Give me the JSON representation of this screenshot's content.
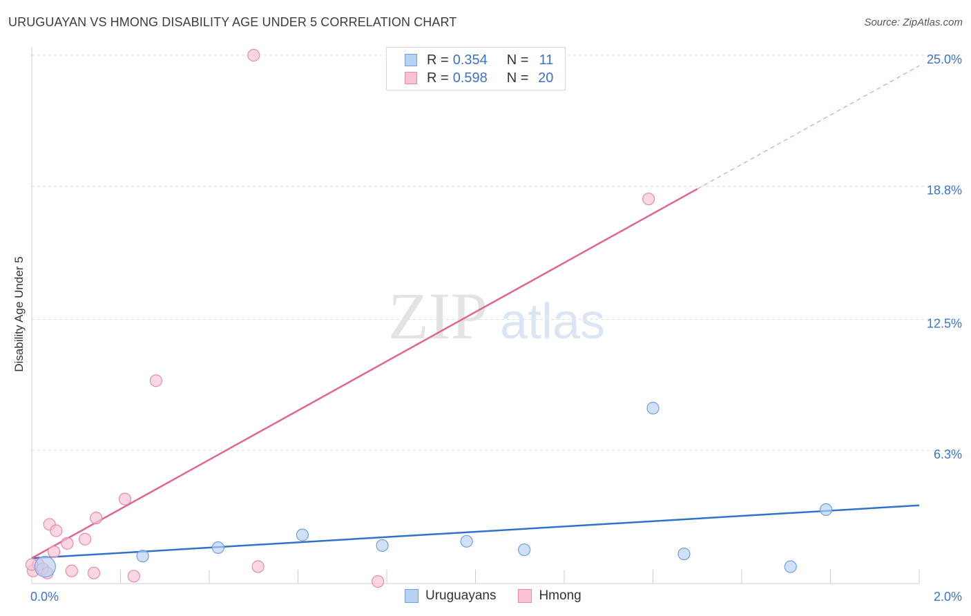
{
  "header": {
    "title": "URUGUAYAN VS HMONG DISABILITY AGE UNDER 5 CORRELATION CHART",
    "source": "Source: ZipAtlas.com"
  },
  "watermark": {
    "zip": "ZIP",
    "atlas": "atlas"
  },
  "legend": {
    "rows": [
      {
        "r_label": "R =",
        "r_value": "0.354",
        "n_label": "N =",
        "n_value": "11"
      },
      {
        "r_label": "R =",
        "r_value": "0.598",
        "n_label": "N =",
        "n_value": "20"
      }
    ]
  },
  "colors": {
    "uruguayans_fill": "#b7d1f2",
    "uruguayans_stroke": "#6f9fdc",
    "uruguayans_line": "#2f72c9",
    "hmong_fill": "#f8c2d2",
    "hmong_stroke": "#e68aa7",
    "hmong_line": "#e0668d",
    "tick_label": "#3a73c9",
    "grid": "#dddddd"
  },
  "chart_data": {
    "type": "scatter",
    "title": "URUGUAYAN VS HMONG DISABILITY AGE UNDER 5 CORRELATION CHART",
    "xlabel": "",
    "ylabel": "Disability Age Under 5",
    "xlim": [
      0.0,
      2.0
    ],
    "ylim": [
      0.0,
      25.0
    ],
    "x_tick_labels": [
      "0.0%",
      "2.0%"
    ],
    "y_ticks": [
      6.3,
      12.5,
      18.8,
      25.0
    ],
    "y_tick_labels": [
      "6.3%",
      "12.5%",
      "18.8%",
      "25.0%"
    ],
    "grid": true,
    "legend": [
      "Uruguayans",
      "Hmong"
    ],
    "series": [
      {
        "name": "Uruguayans",
        "r": 0.354,
        "n": 11,
        "points": [
          {
            "x": 0.03,
            "y": 0.8,
            "size": "large"
          },
          {
            "x": 0.25,
            "y": 1.3
          },
          {
            "x": 0.42,
            "y": 1.7
          },
          {
            "x": 0.61,
            "y": 2.3
          },
          {
            "x": 0.79,
            "y": 1.8
          },
          {
            "x": 0.98,
            "y": 2.0
          },
          {
            "x": 1.11,
            "y": 1.6
          },
          {
            "x": 1.4,
            "y": 8.3
          },
          {
            "x": 1.47,
            "y": 1.4
          },
          {
            "x": 1.71,
            "y": 0.8
          },
          {
            "x": 1.79,
            "y": 3.5
          }
        ],
        "trend": {
          "x0": 0.0,
          "y0": 1.2,
          "x1": 2.0,
          "y1": 3.7,
          "dashed_from": null
        }
      },
      {
        "name": "Hmong",
        "r": 0.598,
        "n": 20,
        "points": [
          {
            "x": 0.003,
            "y": 0.6
          },
          {
            "x": 0.015,
            "y": 0.9
          },
          {
            "x": 0.025,
            "y": 0.7
          },
          {
            "x": 0.035,
            "y": 0.5
          },
          {
            "x": 0.04,
            "y": 2.8
          },
          {
            "x": 0.05,
            "y": 1.5
          },
          {
            "x": 0.055,
            "y": 2.5
          },
          {
            "x": 0.08,
            "y": 1.9
          },
          {
            "x": 0.09,
            "y": 0.6
          },
          {
            "x": 0.12,
            "y": 2.1
          },
          {
            "x": 0.14,
            "y": 0.5
          },
          {
            "x": 0.145,
            "y": 3.1
          },
          {
            "x": 0.21,
            "y": 4.0
          },
          {
            "x": 0.23,
            "y": 0.35
          },
          {
            "x": 0.28,
            "y": 9.6
          },
          {
            "x": 0.5,
            "y": 25.0
          },
          {
            "x": 0.51,
            "y": 0.8
          },
          {
            "x": 0.78,
            "y": 0.1
          },
          {
            "x": 1.39,
            "y": 18.2
          },
          {
            "x": 0.0,
            "y": 0.9
          }
        ],
        "trend": {
          "x0": 0.0,
          "y0": 1.2,
          "x1": 2.0,
          "y1": 24.5,
          "dashed_from": 1.5
        }
      }
    ]
  }
}
